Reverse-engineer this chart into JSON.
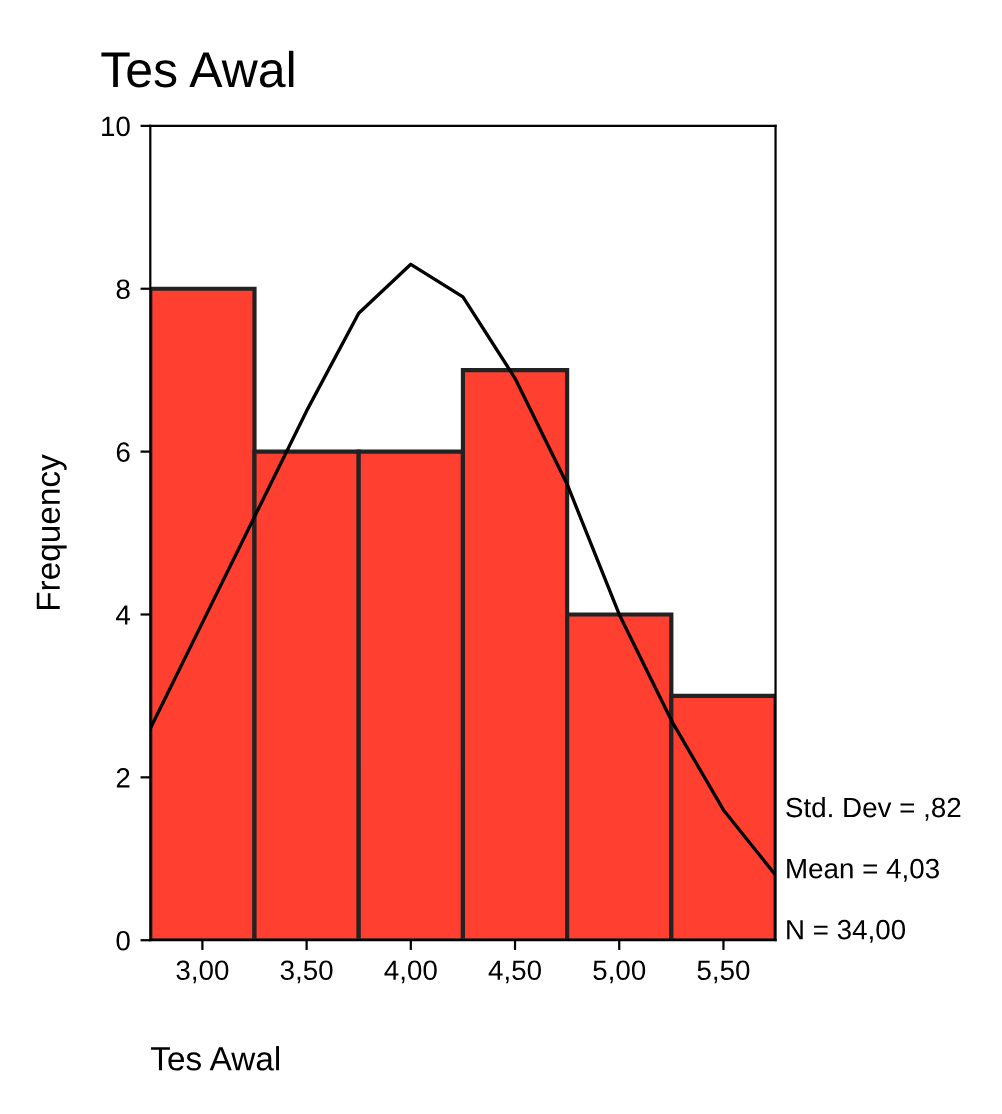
{
  "chart_data": {
    "type": "histogram",
    "title": "Tes Awal",
    "xlabel": "Tes Awal",
    "ylabel": "Frequency",
    "bins": [
      2.75,
      3.25,
      3.75,
      4.25,
      4.75,
      5.25,
      5.75
    ],
    "values": [
      8,
      6,
      6,
      7,
      4,
      3
    ],
    "color": "#ff4030",
    "series": [
      {
        "type": "line",
        "color": "#000000",
        "x": [
          2.75,
          3.0,
          3.25,
          3.5,
          3.75,
          4.0,
          4.25,
          4.5,
          4.75,
          5.0,
          5.25,
          5.5,
          5.75
        ],
        "values": [
          2.6,
          3.9,
          5.2,
          6.5,
          7.7,
          8.3,
          7.9,
          6.9,
          5.6,
          4.0,
          2.7,
          1.6,
          0.8
        ]
      }
    ],
    "xlim": [
      2.75,
      5.75
    ],
    "xticks": [
      {
        "value": 3.0,
        "label": "3,00"
      },
      {
        "value": 3.5,
        "label": "3,50"
      },
      {
        "value": 4.0,
        "label": "4,00"
      },
      {
        "value": 4.5,
        "label": "4,50"
      },
      {
        "value": 5.0,
        "label": "5,00"
      },
      {
        "value": 5.5,
        "label": "5,50"
      }
    ],
    "ylim": [
      0,
      10
    ],
    "yticks": [
      0,
      2,
      4,
      6,
      8,
      10
    ],
    "grid": false,
    "annotations": [
      "Std. Dev = ,82",
      "Mean = 4,03",
      "N = 34,00"
    ]
  }
}
